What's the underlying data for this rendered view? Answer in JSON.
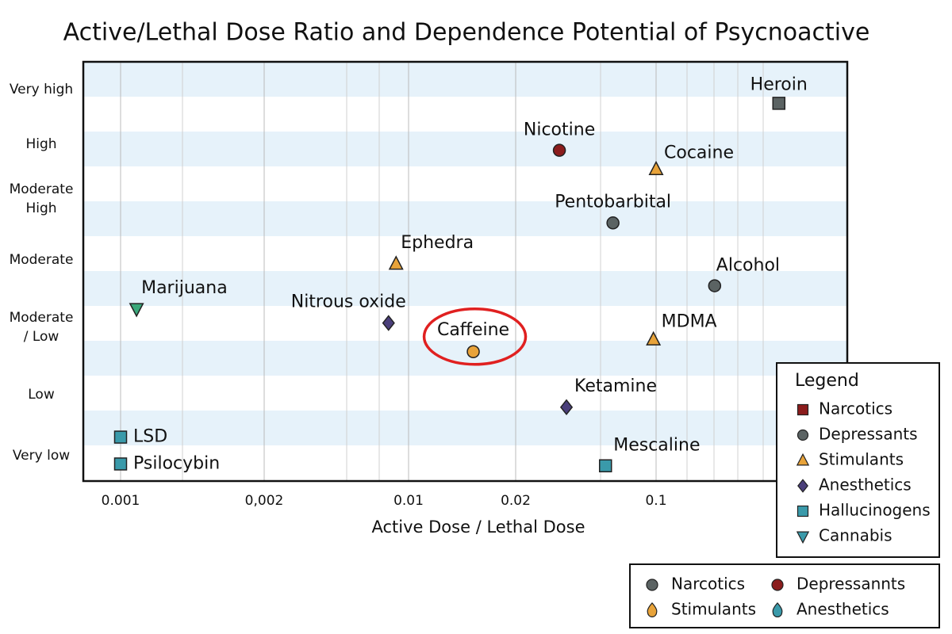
{
  "chart_data": {
    "type": "scatter",
    "title": "Active/Lethal Dose Ratio and Dependence Potential of Psycnoactive",
    "xlabel": "Active Dose / Lethal Dose",
    "log_x": true,
    "xlim": [
      0.00084,
      0.9
    ],
    "xticks": [
      0.001,
      {
        "value": 0.002,
        "label": "0,002"
      },
      0.01,
      0.02,
      0.1
    ],
    "ylim": [
      0.58,
      7.45
    ],
    "yticks": [
      {
        "value": 1,
        "label": "Very low"
      },
      {
        "value": 2,
        "label": "Low"
      },
      {
        "value": 3.1,
        "label": "Moderate\n/ Low"
      },
      {
        "value": 4.2,
        "label": "Moderate"
      },
      {
        "value": 5.2,
        "label": "Moderate\nHigh"
      },
      {
        "value": 6.1,
        "label": "High"
      },
      {
        "value": 7,
        "label": "Very high"
      }
    ],
    "points": [
      {
        "name": "Heroin",
        "x": 0.41,
        "y": 6.77,
        "color": "#5b6363",
        "marker": "square"
      },
      {
        "name": "Nicotine",
        "x": 0.033,
        "y": 6.0,
        "color": "#8b1c1c",
        "marker": "circle"
      },
      {
        "name": "Cocaine",
        "x": 0.1,
        "y": 5.69,
        "color": "#e8a33a",
        "marker": "triangle"
      },
      {
        "name": "Pentobarbital",
        "x": 0.061,
        "y": 4.81,
        "color": "#5b6363",
        "marker": "circle"
      },
      {
        "name": "Ephedra",
        "x": 0.0087,
        "y": 4.14,
        "color": "#e8a33a",
        "marker": "triangle"
      },
      {
        "name": "Alcohol",
        "x": 0.196,
        "y": 3.78,
        "color": "#5b6363",
        "marker": "circle"
      },
      {
        "name": "Marijuana",
        "x": 0.00108,
        "y": 3.4,
        "color": "#3aa87a",
        "marker": "triangle-down"
      },
      {
        "name": "Nitrous oxide",
        "x": 0.008,
        "y": 3.17,
        "color": "#4a3f7a",
        "marker": "diamond"
      },
      {
        "name": "Caffeine",
        "x": 0.0152,
        "y": 2.7,
        "color": "#e8a33a",
        "marker": "circle"
      },
      {
        "name": "MDMA",
        "x": 0.097,
        "y": 2.9,
        "color": "#e8a33a",
        "marker": "triangle"
      },
      {
        "name": "Ketamine",
        "x": 0.0358,
        "y": 1.79,
        "color": "#4a3f7a",
        "marker": "diamond"
      },
      {
        "name": "LSD",
        "x": 0.001,
        "y": 1.3,
        "color": "#3a9aaa",
        "marker": "square"
      },
      {
        "name": "Psilocybin",
        "x": 0.001,
        "y": 0.86,
        "color": "#3a9aaa",
        "marker": "square"
      },
      {
        "name": "Mescaline",
        "x": 0.056,
        "y": 0.83,
        "color": "#3a9aaa",
        "marker": "square"
      }
    ],
    "highlight": "Caffeine",
    "highlight_color": "#e02020",
    "legend": {
      "title": "Legend",
      "items": [
        {
          "name": "Narcotics",
          "color": "#8b1c1c",
          "marker": "square"
        },
        {
          "name": "Depressants",
          "color": "#5b6363",
          "marker": "circle"
        },
        {
          "name": "Stimulants",
          "color": "#e8a33a",
          "marker": "triangle"
        },
        {
          "name": "Anesthetics",
          "color": "#4a3f7a",
          "marker": "diamond"
        },
        {
          "name": "Hallucinogens",
          "color": "#3a9aaa",
          "marker": "square"
        },
        {
          "name": "Cannabis",
          "color": "#3a9aaa",
          "marker": "triangle-down"
        }
      ]
    },
    "legend2": {
      "items": [
        {
          "name": "Narcotics",
          "color": "#5b6363",
          "marker": "circle"
        },
        {
          "name": "Depressannts",
          "color": "#8b1c1c",
          "marker": "circle"
        },
        {
          "name": "Stimulants",
          "color": "#e8a33a",
          "marker": "drop"
        },
        {
          "name": "Anesthetics",
          "color": "#3a9aaa",
          "marker": "drop"
        }
      ]
    }
  }
}
